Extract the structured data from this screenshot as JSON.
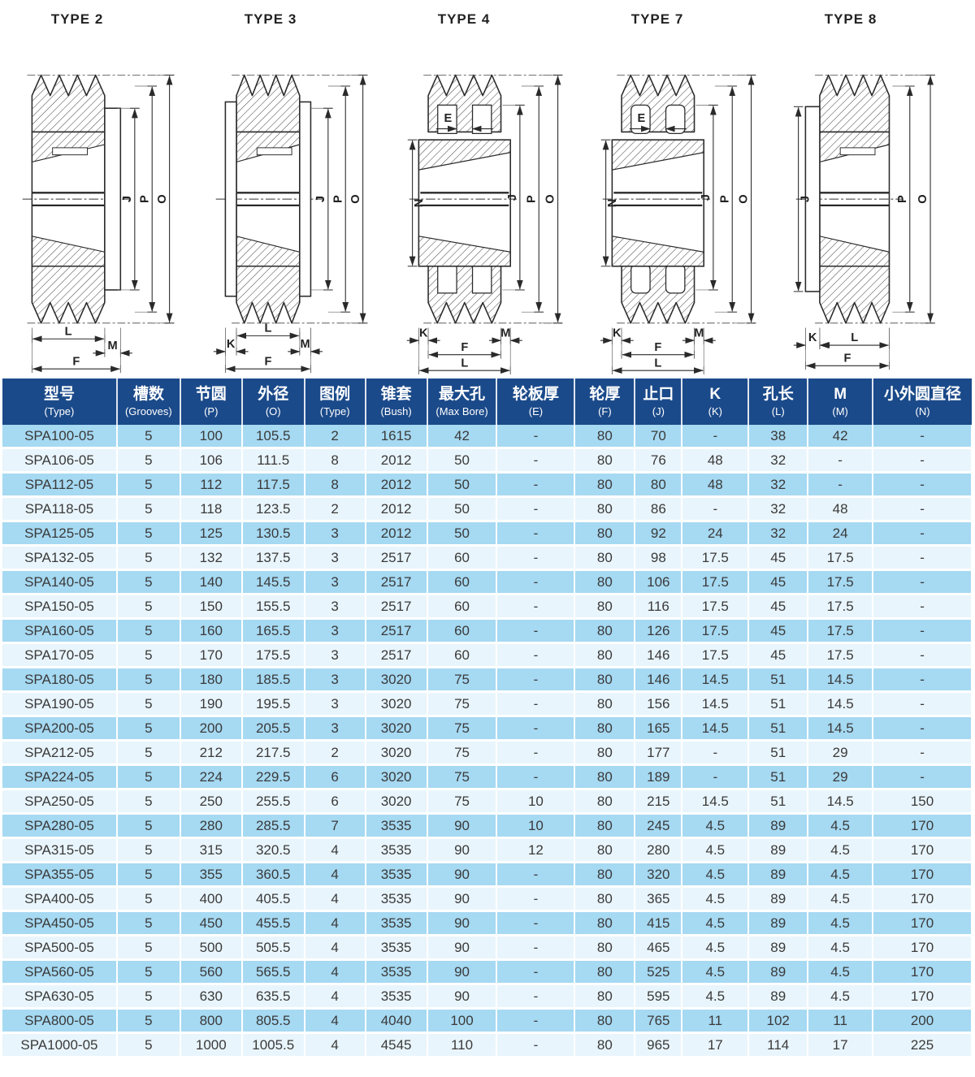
{
  "colors": {
    "header_bg": "#1b4a8a",
    "header_text": "#ffffff",
    "row_medium": "#a6d9f2",
    "row_light": "#e9f5fc",
    "cell_text": "#3a3a3a",
    "line": "#2a2a2a"
  },
  "diagrams": [
    {
      "title": "TYPE 2",
      "dims": {
        "right": [
          "J",
          "P",
          "O"
        ],
        "bottom": [
          "L",
          "M",
          "F"
        ]
      }
    },
    {
      "title": "TYPE 3",
      "dims": {
        "right": [
          "J",
          "P",
          "O"
        ],
        "bottom": [
          "K",
          "L",
          "M",
          "F"
        ]
      }
    },
    {
      "title": "TYPE 4",
      "dims": {
        "top": [
          "E"
        ],
        "left": [
          "N"
        ],
        "right": [
          "J",
          "P",
          "O"
        ],
        "bottom": [
          "K",
          "M",
          "F",
          "L"
        ]
      }
    },
    {
      "title": "TYPE 7",
      "dims": {
        "top": [
          "E"
        ],
        "left": [
          "N"
        ],
        "right": [
          "J",
          "P",
          "O"
        ],
        "bottom": [
          "K",
          "M",
          "F",
          "L"
        ]
      }
    },
    {
      "title": "TYPE 8",
      "dims": {
        "left": [
          "J"
        ],
        "right": [
          "P",
          "O"
        ],
        "bottom": [
          "K",
          "L",
          "F"
        ]
      }
    }
  ],
  "table": {
    "headers": [
      {
        "zh": "型号",
        "en": "(Type)"
      },
      {
        "zh": "槽数",
        "en": "(Grooves)"
      },
      {
        "zh": "节圆",
        "en": "(P)"
      },
      {
        "zh": "外径",
        "en": "(O)"
      },
      {
        "zh": "图例",
        "en": "(Type)"
      },
      {
        "zh": "锥套",
        "en": "(Bush)"
      },
      {
        "zh": "最大孔",
        "en": "(Max Bore)"
      },
      {
        "zh": "轮板厚",
        "en": "(E)"
      },
      {
        "zh": "轮厚",
        "en": "(F)"
      },
      {
        "zh": "止口",
        "en": "(J)"
      },
      {
        "zh": "K",
        "en": "(K)"
      },
      {
        "zh": "孔长",
        "en": "(L)"
      },
      {
        "zh": "M",
        "en": "(M)"
      },
      {
        "zh": "小外圆直径",
        "en": "(N)"
      }
    ],
    "rows": [
      [
        "SPA100-05",
        "5",
        "100",
        "105.5",
        "2",
        "1615",
        "42",
        "-",
        "80",
        "70",
        "-",
        "38",
        "42",
        "-"
      ],
      [
        "SPA106-05",
        "5",
        "106",
        "111.5",
        "8",
        "2012",
        "50",
        "-",
        "80",
        "76",
        "48",
        "32",
        "-",
        "-"
      ],
      [
        "SPA112-05",
        "5",
        "112",
        "117.5",
        "8",
        "2012",
        "50",
        "-",
        "80",
        "80",
        "48",
        "32",
        "-",
        "-"
      ],
      [
        "SPA118-05",
        "5",
        "118",
        "123.5",
        "2",
        "2012",
        "50",
        "-",
        "80",
        "86",
        "-",
        "32",
        "48",
        "-"
      ],
      [
        "SPA125-05",
        "5",
        "125",
        "130.5",
        "3",
        "2012",
        "50",
        "-",
        "80",
        "92",
        "24",
        "32",
        "24",
        "-"
      ],
      [
        "SPA132-05",
        "5",
        "132",
        "137.5",
        "3",
        "2517",
        "60",
        "-",
        "80",
        "98",
        "17.5",
        "45",
        "17.5",
        "-"
      ],
      [
        "SPA140-05",
        "5",
        "140",
        "145.5",
        "3",
        "2517",
        "60",
        "-",
        "80",
        "106",
        "17.5",
        "45",
        "17.5",
        "-"
      ],
      [
        "SPA150-05",
        "5",
        "150",
        "155.5",
        "3",
        "2517",
        "60",
        "-",
        "80",
        "116",
        "17.5",
        "45",
        "17.5",
        "-"
      ],
      [
        "SPA160-05",
        "5",
        "160",
        "165.5",
        "3",
        "2517",
        "60",
        "-",
        "80",
        "126",
        "17.5",
        "45",
        "17.5",
        "-"
      ],
      [
        "SPA170-05",
        "5",
        "170",
        "175.5",
        "3",
        "2517",
        "60",
        "-",
        "80",
        "146",
        "17.5",
        "45",
        "17.5",
        "-"
      ],
      [
        "SPA180-05",
        "5",
        "180",
        "185.5",
        "3",
        "3020",
        "75",
        "-",
        "80",
        "146",
        "14.5",
        "51",
        "14.5",
        "-"
      ],
      [
        "SPA190-05",
        "5",
        "190",
        "195.5",
        "3",
        "3020",
        "75",
        "-",
        "80",
        "156",
        "14.5",
        "51",
        "14.5",
        "-"
      ],
      [
        "SPA200-05",
        "5",
        "200",
        "205.5",
        "3",
        "3020",
        "75",
        "-",
        "80",
        "165",
        "14.5",
        "51",
        "14.5",
        "-"
      ],
      [
        "SPA212-05",
        "5",
        "212",
        "217.5",
        "2",
        "3020",
        "75",
        "-",
        "80",
        "177",
        "-",
        "51",
        "29",
        "-"
      ],
      [
        "SPA224-05",
        "5",
        "224",
        "229.5",
        "6",
        "3020",
        "75",
        "-",
        "80",
        "189",
        "-",
        "51",
        "29",
        "-"
      ],
      [
        "SPA250-05",
        "5",
        "250",
        "255.5",
        "6",
        "3020",
        "75",
        "10",
        "80",
        "215",
        "14.5",
        "51",
        "14.5",
        "150"
      ],
      [
        "SPA280-05",
        "5",
        "280",
        "285.5",
        "7",
        "3535",
        "90",
        "10",
        "80",
        "245",
        "4.5",
        "89",
        "4.5",
        "170"
      ],
      [
        "SPA315-05",
        "5",
        "315",
        "320.5",
        "4",
        "3535",
        "90",
        "12",
        "80",
        "280",
        "4.5",
        "89",
        "4.5",
        "170"
      ],
      [
        "SPA355-05",
        "5",
        "355",
        "360.5",
        "4",
        "3535",
        "90",
        "-",
        "80",
        "320",
        "4.5",
        "89",
        "4.5",
        "170"
      ],
      [
        "SPA400-05",
        "5",
        "400",
        "405.5",
        "4",
        "3535",
        "90",
        "-",
        "80",
        "365",
        "4.5",
        "89",
        "4.5",
        "170"
      ],
      [
        "SPA450-05",
        "5",
        "450",
        "455.5",
        "4",
        "3535",
        "90",
        "-",
        "80",
        "415",
        "4.5",
        "89",
        "4.5",
        "170"
      ],
      [
        "SPA500-05",
        "5",
        "500",
        "505.5",
        "4",
        "3535",
        "90",
        "-",
        "80",
        "465",
        "4.5",
        "89",
        "4.5",
        "170"
      ],
      [
        "SPA560-05",
        "5",
        "560",
        "565.5",
        "4",
        "3535",
        "90",
        "-",
        "80",
        "525",
        "4.5",
        "89",
        "4.5",
        "170"
      ],
      [
        "SPA630-05",
        "5",
        "630",
        "635.5",
        "4",
        "3535",
        "90",
        "-",
        "80",
        "595",
        "4.5",
        "89",
        "4.5",
        "170"
      ],
      [
        "SPA800-05",
        "5",
        "800",
        "805.5",
        "4",
        "4040",
        "100",
        "-",
        "80",
        "765",
        "11",
        "102",
        "11",
        "200"
      ],
      [
        "SPA1000-05",
        "5",
        "1000",
        "1005.5",
        "4",
        "4545",
        "110",
        "-",
        "80",
        "965",
        "17",
        "114",
        "17",
        "225"
      ]
    ]
  }
}
